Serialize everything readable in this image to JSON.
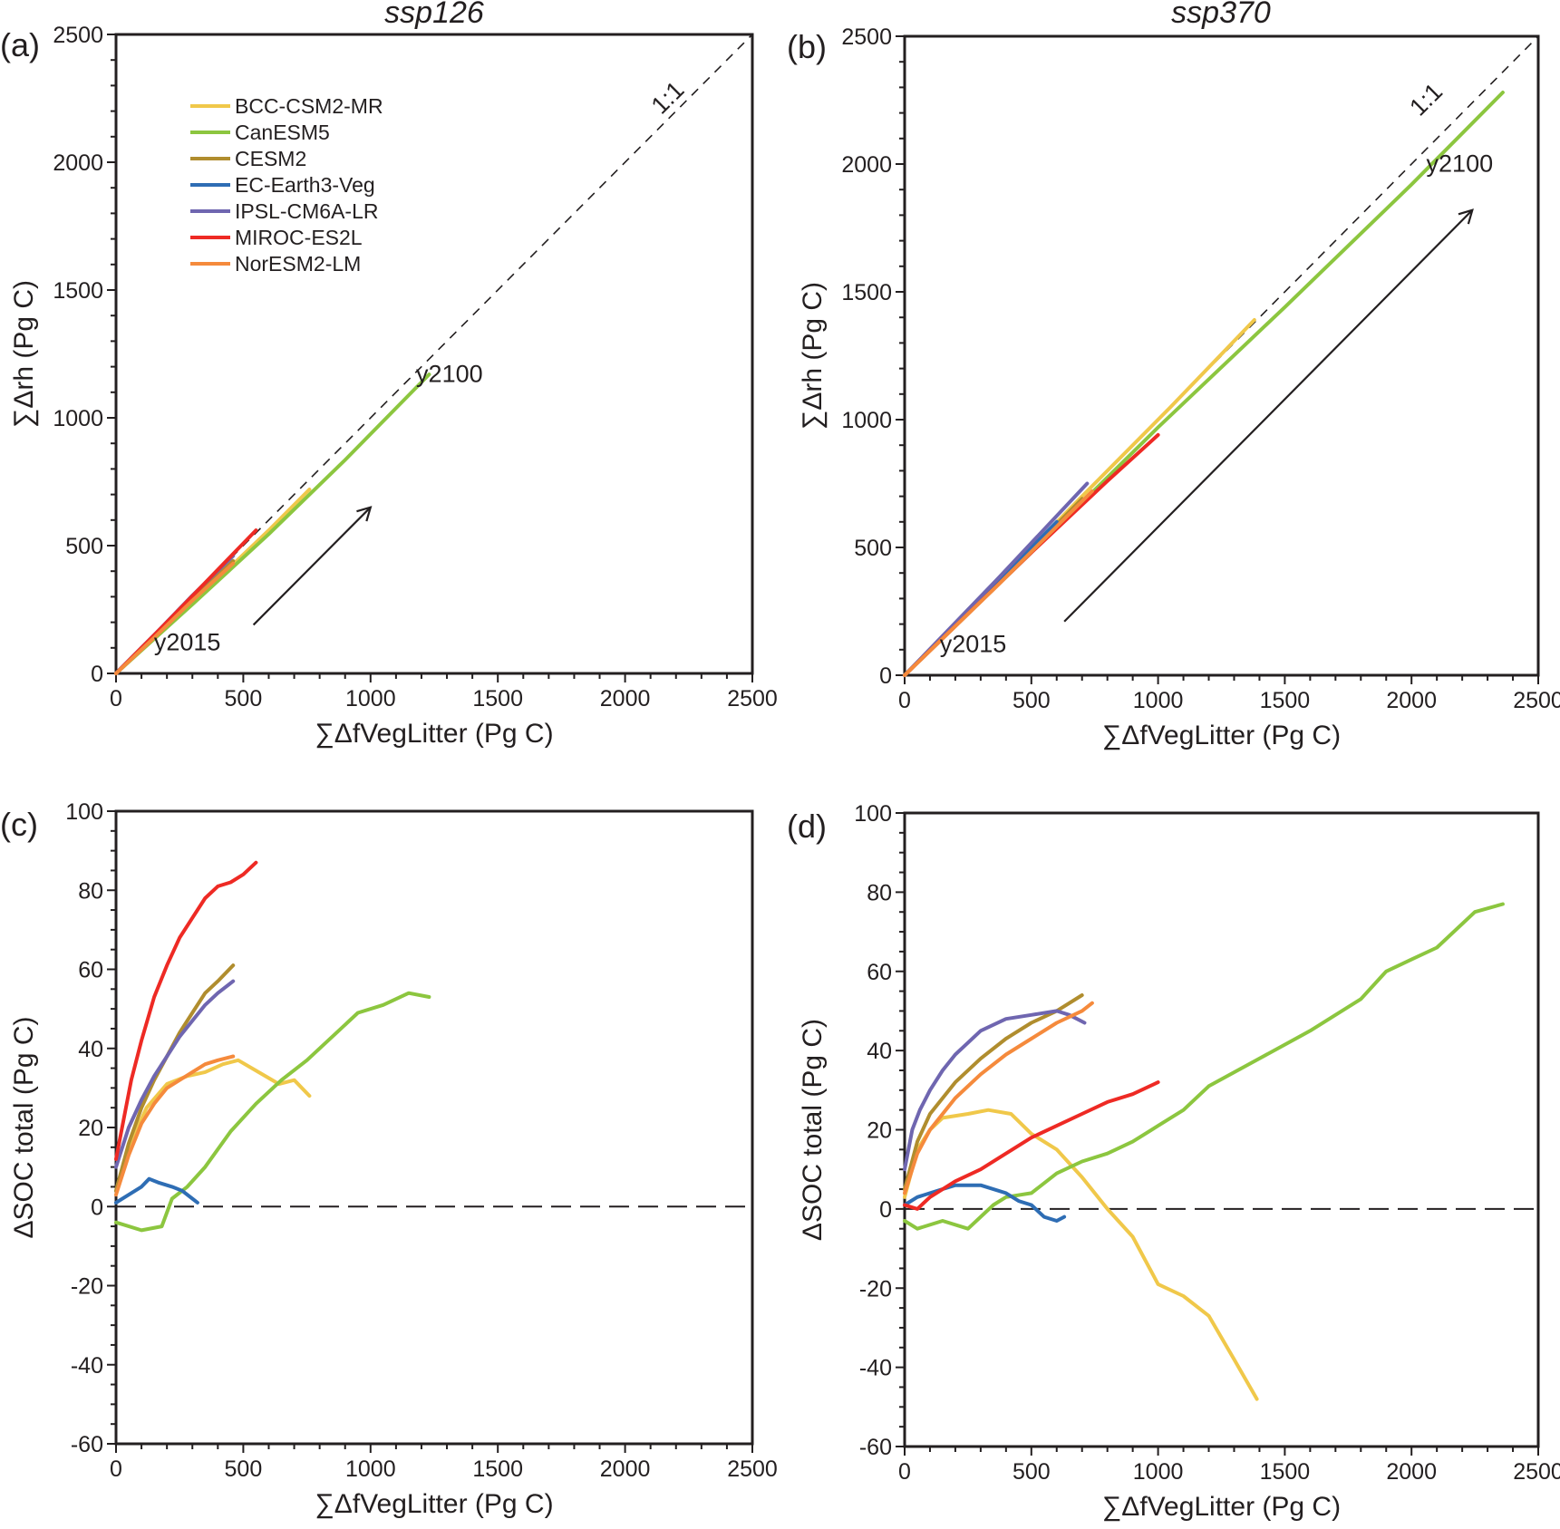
{
  "figure": {
    "legend": {
      "placement": "top-left of panel (a)",
      "entries": [
        {
          "name": "BCC-CSM2-MR",
          "color": "#f0c84a"
        },
        {
          "name": "CanESM5",
          "color": "#8cc63f"
        },
        {
          "name": "CESM2",
          "color": "#b08d2e"
        },
        {
          "name": "EC-Earth3-Veg",
          "color": "#2e6db4"
        },
        {
          "name": "IPSL-CM6A-LR",
          "color": "#6f66b0"
        },
        {
          "name": "MIROC-ES2L",
          "color": "#ee2a24"
        },
        {
          "name": "NorESM2-LM",
          "color": "#f58a3c"
        }
      ]
    }
  },
  "chart_data": [
    {
      "panel": "(a)",
      "type": "line",
      "title": "ssp126",
      "xlabel": "∑ΔfVegLitter (Pg C)",
      "ylabel": "∑Δrh (Pg C)",
      "xlim": [
        0,
        2500
      ],
      "ylim": [
        0,
        2500
      ],
      "xticks": [
        0,
        500,
        1000,
        1500,
        2000,
        2500
      ],
      "yticks": [
        0,
        500,
        1000,
        1500,
        2000,
        2500
      ],
      "reference_line": {
        "label": "1:1",
        "style": "dashed",
        "from": [
          0,
          0
        ],
        "to": [
          2500,
          2500
        ]
      },
      "annotations": [
        {
          "text": "y2015",
          "at": [
            280,
            90
          ]
        },
        {
          "text": "y2100",
          "at": [
            1310,
            1140
          ]
        },
        {
          "text": "1:1",
          "at": [
            2190,
            2230
          ],
          "rotate": -45
        }
      ],
      "arrow": {
        "from": [
          540,
          190
        ],
        "to": [
          1000,
          650
        ]
      },
      "series": [
        {
          "name": "BCC-CSM2-MR",
          "x": [
            0,
            200,
            400,
            600,
            760
          ],
          "y": [
            0,
            185,
            370,
            560,
            720
          ]
        },
        {
          "name": "CanESM5",
          "x": [
            0,
            300,
            600,
            900,
            1230
          ],
          "y": [
            0,
            270,
            545,
            835,
            1170
          ]
        },
        {
          "name": "CESM2",
          "x": [
            0,
            150,
            300,
            460
          ],
          "y": [
            0,
            145,
            290,
            440
          ]
        },
        {
          "name": "EC-Earth3-Veg",
          "x": [
            0,
            150,
            310
          ],
          "y": [
            0,
            150,
            305
          ]
        },
        {
          "name": "IPSL-CM6A-LR",
          "x": [
            0,
            150,
            300,
            460
          ],
          "y": [
            0,
            150,
            305,
            460
          ]
        },
        {
          "name": "MIROC-ES2L",
          "x": [
            0,
            180,
            360,
            550
          ],
          "y": [
            0,
            180,
            365,
            560
          ]
        },
        {
          "name": "NorESM2-LM",
          "x": [
            0,
            150,
            300,
            460
          ],
          "y": [
            0,
            140,
            285,
            430
          ]
        }
      ]
    },
    {
      "panel": "(b)",
      "type": "line",
      "title": "ssp370",
      "xlabel": "∑ΔfVegLitter (Pg C)",
      "ylabel": "∑Δrh (Pg C)",
      "xlim": [
        0,
        2500
      ],
      "ylim": [
        0,
        2500
      ],
      "xticks": [
        0,
        500,
        1000,
        1500,
        2000,
        2500
      ],
      "yticks": [
        0,
        500,
        1000,
        1500,
        2000,
        2500
      ],
      "reference_line": {
        "label": "1:1",
        "style": "dashed",
        "from": [
          0,
          0
        ],
        "to": [
          2500,
          2500
        ]
      },
      "annotations": [
        {
          "text": "y2015",
          "at": [
            270,
            90
          ]
        },
        {
          "text": "y2100",
          "at": [
            2190,
            1970
          ]
        },
        {
          "text": "1:1",
          "at": [
            2080,
            2230
          ],
          "rotate": -45
        }
      ],
      "arrow": {
        "from": [
          630,
          210
        ],
        "to": [
          2240,
          1820
        ]
      },
      "series": [
        {
          "name": "BCC-CSM2-MR",
          "x": [
            0,
            350,
            700,
            1050,
            1380
          ],
          "y": [
            0,
            345,
            700,
            1050,
            1390
          ]
        },
        {
          "name": "CanESM5",
          "x": [
            0,
            500,
            1000,
            1500,
            2000,
            2360
          ],
          "y": [
            0,
            480,
            970,
            1440,
            1920,
            2280
          ]
        },
        {
          "name": "CESM2",
          "x": [
            0,
            350,
            700
          ],
          "y": [
            0,
            340,
            690
          ]
        },
        {
          "name": "EC-Earth3-Veg",
          "x": [
            0,
            300,
            600
          ],
          "y": [
            0,
            300,
            600
          ]
        },
        {
          "name": "IPSL-CM6A-LR",
          "x": [
            0,
            360,
            720
          ],
          "y": [
            0,
            370,
            750
          ]
        },
        {
          "name": "MIROC-ES2L",
          "x": [
            0,
            500,
            800,
            1000
          ],
          "y": [
            0,
            480,
            760,
            940
          ]
        },
        {
          "name": "NorESM2-LM",
          "x": [
            0,
            370,
            740
          ],
          "y": [
            0,
            355,
            720
          ]
        }
      ]
    },
    {
      "panel": "(c)",
      "type": "line",
      "xlabel": "∑ΔfVegLitter (Pg C)",
      "ylabel": "ΔSOC total (Pg C)",
      "xlim": [
        0,
        2500
      ],
      "ylim": [
        -60,
        100
      ],
      "xticks": [
        0,
        500,
        1000,
        1500,
        2000,
        2500
      ],
      "yticks": [
        -60,
        -40,
        -20,
        0,
        20,
        40,
        60,
        80,
        100
      ],
      "reference_line": {
        "style": "long-dashed",
        "y": 0
      },
      "series": [
        {
          "name": "BCC-CSM2-MR",
          "x": [
            0,
            50,
            120,
            200,
            280,
            350,
            420,
            480,
            560,
            640,
            700,
            760
          ],
          "y": [
            4,
            15,
            25,
            31,
            33,
            34,
            36,
            37,
            34,
            31,
            32,
            28
          ]
        },
        {
          "name": "CanESM5",
          "x": [
            0,
            100,
            180,
            220,
            280,
            350,
            450,
            550,
            650,
            750,
            850,
            950,
            1050,
            1150,
            1230
          ],
          "y": [
            -4,
            -6,
            -5,
            2,
            5,
            10,
            19,
            26,
            32,
            37,
            43,
            49,
            51,
            54,
            53
          ]
        },
        {
          "name": "CESM2",
          "x": [
            0,
            50,
            100,
            150,
            200,
            250,
            300,
            350,
            400,
            460
          ],
          "y": [
            4,
            16,
            25,
            32,
            38,
            44,
            49,
            54,
            57,
            61
          ]
        },
        {
          "name": "EC-Earth3-Veg",
          "x": [
            0,
            50,
            100,
            130,
            170,
            220,
            260,
            300,
            320
          ],
          "y": [
            1,
            3,
            5,
            7,
            6,
            5,
            4,
            2,
            1
          ]
        },
        {
          "name": "IPSL-CM6A-LR",
          "x": [
            0,
            50,
            100,
            150,
            200,
            250,
            300,
            350,
            400,
            460
          ],
          "y": [
            10,
            20,
            27,
            33,
            38,
            43,
            47,
            51,
            54,
            57
          ]
        },
        {
          "name": "MIROC-ES2L",
          "x": [
            0,
            30,
            60,
            100,
            150,
            200,
            250,
            300,
            350,
            400,
            450,
            500,
            550
          ],
          "y": [
            12,
            22,
            32,
            42,
            53,
            61,
            68,
            73,
            78,
            81,
            82,
            84,
            87
          ]
        },
        {
          "name": "NorESM2-LM",
          "x": [
            0,
            50,
            100,
            150,
            200,
            250,
            300,
            350,
            400,
            460
          ],
          "y": [
            3,
            13,
            21,
            26,
            30,
            32,
            34,
            36,
            37,
            38
          ]
        }
      ]
    },
    {
      "panel": "(d)",
      "type": "line",
      "xlabel": "∑ΔfVegLitter (Pg C)",
      "ylabel": "ΔSOC total (Pg C)",
      "xlim": [
        0,
        2500
      ],
      "ylim": [
        -60,
        100
      ],
      "xticks": [
        0,
        500,
        1000,
        1500,
        2000,
        2500
      ],
      "yticks": [
        -60,
        -40,
        -20,
        0,
        20,
        40,
        60,
        80,
        100
      ],
      "reference_line": {
        "style": "long-dashed",
        "y": 0
      },
      "series": [
        {
          "name": "BCC-CSM2-MR",
          "x": [
            0,
            50,
            100,
            150,
            250,
            330,
            420,
            500,
            600,
            700,
            800,
            900,
            1000,
            1100,
            1200,
            1300,
            1390
          ],
          "y": [
            3,
            15,
            20,
            23,
            24,
            25,
            24,
            19,
            15,
            8,
            0,
            -7,
            -19,
            -22,
            -27,
            -38,
            -48
          ]
        },
        {
          "name": "CanESM5",
          "x": [
            0,
            50,
            150,
            250,
            350,
            400,
            500,
            600,
            700,
            800,
            900,
            1000,
            1100,
            1200,
            1400,
            1600,
            1800,
            1900,
            2000,
            2100,
            2250,
            2360
          ],
          "y": [
            -3,
            -5,
            -3,
            -5,
            1,
            3,
            4,
            9,
            12,
            14,
            17,
            21,
            25,
            31,
            38,
            45,
            53,
            60,
            63,
            66,
            75,
            77
          ]
        },
        {
          "name": "CESM2",
          "x": [
            0,
            50,
            100,
            200,
            300,
            400,
            500,
            600,
            700
          ],
          "y": [
            5,
            17,
            24,
            32,
            38,
            43,
            47,
            50,
            54
          ]
        },
        {
          "name": "EC-Earth3-Veg",
          "x": [
            0,
            50,
            100,
            150,
            200,
            300,
            400,
            450,
            500,
            550,
            600,
            630
          ],
          "y": [
            1,
            3,
            4,
            5,
            6,
            6,
            4,
            2,
            1,
            -2,
            -3,
            -2
          ]
        },
        {
          "name": "IPSL-CM6A-LR",
          "x": [
            0,
            30,
            60,
            100,
            150,
            200,
            250,
            300,
            400,
            500,
            600,
            650,
            710
          ],
          "y": [
            10,
            20,
            25,
            30,
            35,
            39,
            42,
            45,
            48,
            49,
            50,
            49,
            47
          ]
        },
        {
          "name": "MIROC-ES2L",
          "x": [
            0,
            50,
            100,
            200,
            300,
            400,
            500,
            600,
            700,
            800,
            900,
            1000
          ],
          "y": [
            1,
            0,
            3,
            7,
            10,
            14,
            18,
            21,
            24,
            27,
            29,
            32
          ]
        },
        {
          "name": "NorESM2-LM",
          "x": [
            0,
            50,
            100,
            200,
            300,
            400,
            500,
            600,
            700,
            740
          ],
          "y": [
            4,
            14,
            20,
            28,
            34,
            39,
            43,
            47,
            50,
            52
          ]
        }
      ]
    }
  ]
}
